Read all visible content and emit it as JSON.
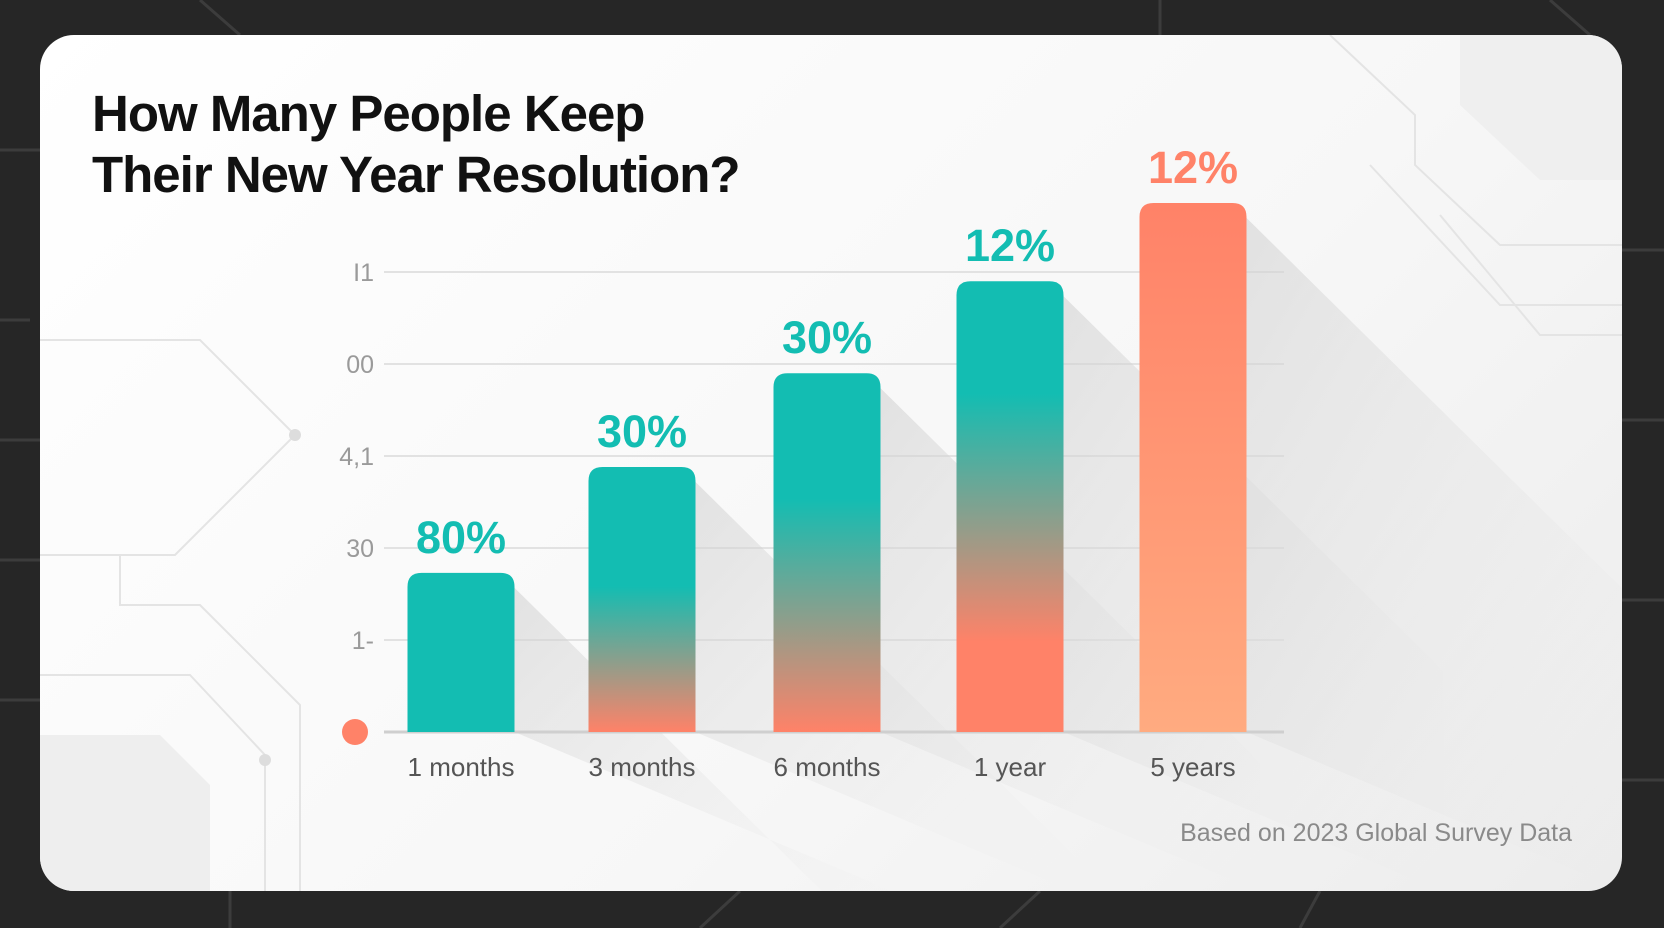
{
  "title_lines": [
    "How Many People Keep",
    "Their New Year Resolution?"
  ],
  "footnote": "Based on 2023 Global Survey Data",
  "colors": {
    "background": "#262626",
    "card": "#ffffff",
    "teal": "#13bdb2",
    "coral": "#ff8268",
    "peach": "#ffab80",
    "gridline": "#e2e2e2",
    "tick_text": "#9a9a9a"
  },
  "chart_data": {
    "type": "bar",
    "title": "How Many People Keep Their New Year Resolution?",
    "categories": [
      "1 months",
      "3 months",
      "6 months",
      "1 year",
      "5 years"
    ],
    "data_labels": [
      "80%",
      "30%",
      "30%",
      "12%",
      "12%"
    ],
    "bar_levels": [
      1.73,
      2.88,
      3.9,
      4.9,
      5.75
    ],
    "y_tick_labels": [
      "",
      "1-",
      "30",
      "4,1",
      "00",
      "I1"
    ],
    "grid": true,
    "label_colors": [
      "#13bdb2",
      "#13bdb2",
      "#13bdb2",
      "#13bdb2",
      "#ff8268"
    ],
    "footnote": "Based on 2023 Global Survey Data"
  }
}
